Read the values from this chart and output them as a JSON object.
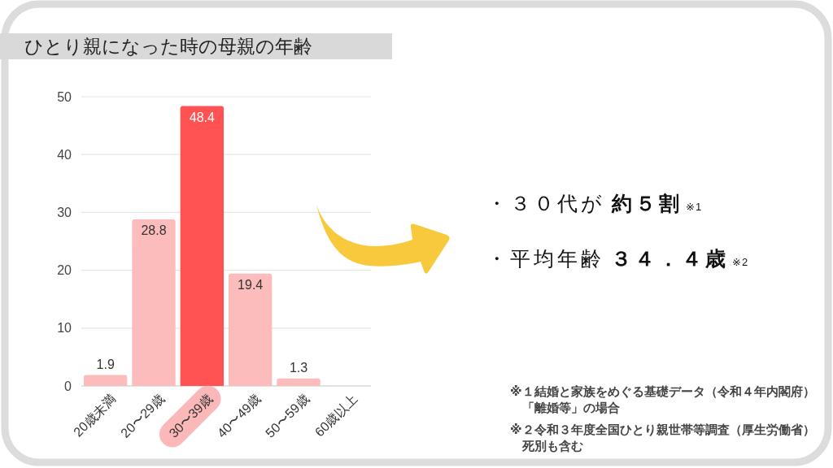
{
  "chart_data": {
    "type": "bar",
    "title": "ひとり親になった時の母親の年齢",
    "categories": [
      "20歳未満",
      "20〜29歳",
      "30〜39歳",
      "40〜49歳",
      "50〜59歳",
      "60歳以上"
    ],
    "stacked": true,
    "series": [
      {
        "color": "#fdbcbc",
        "values": [
          1.9,
          28.8,
          null,
          19.4,
          1.3,
          null
        ]
      },
      {
        "color": "#ff5252",
        "values": [
          null,
          null,
          48.4,
          null,
          null,
          null
        ]
      }
    ],
    "ylim": [
      0,
      50
    ],
    "yticks": [
      0,
      10,
      20,
      30,
      40,
      50
    ],
    "grid": "y",
    "data_labels": true,
    "annotations": [
      "・３０代が 約５割 ※1",
      "・平均年齢 ３４．４歳 ※2",
      "※１結婚と家族をめぐる基礎データ（令和４年内閣府）",
      "「離婚等」の場合",
      "※２令和３年度全国ひとり親世帯等調査（厚生労働省）",
      "死別も含む"
    ]
  }
}
